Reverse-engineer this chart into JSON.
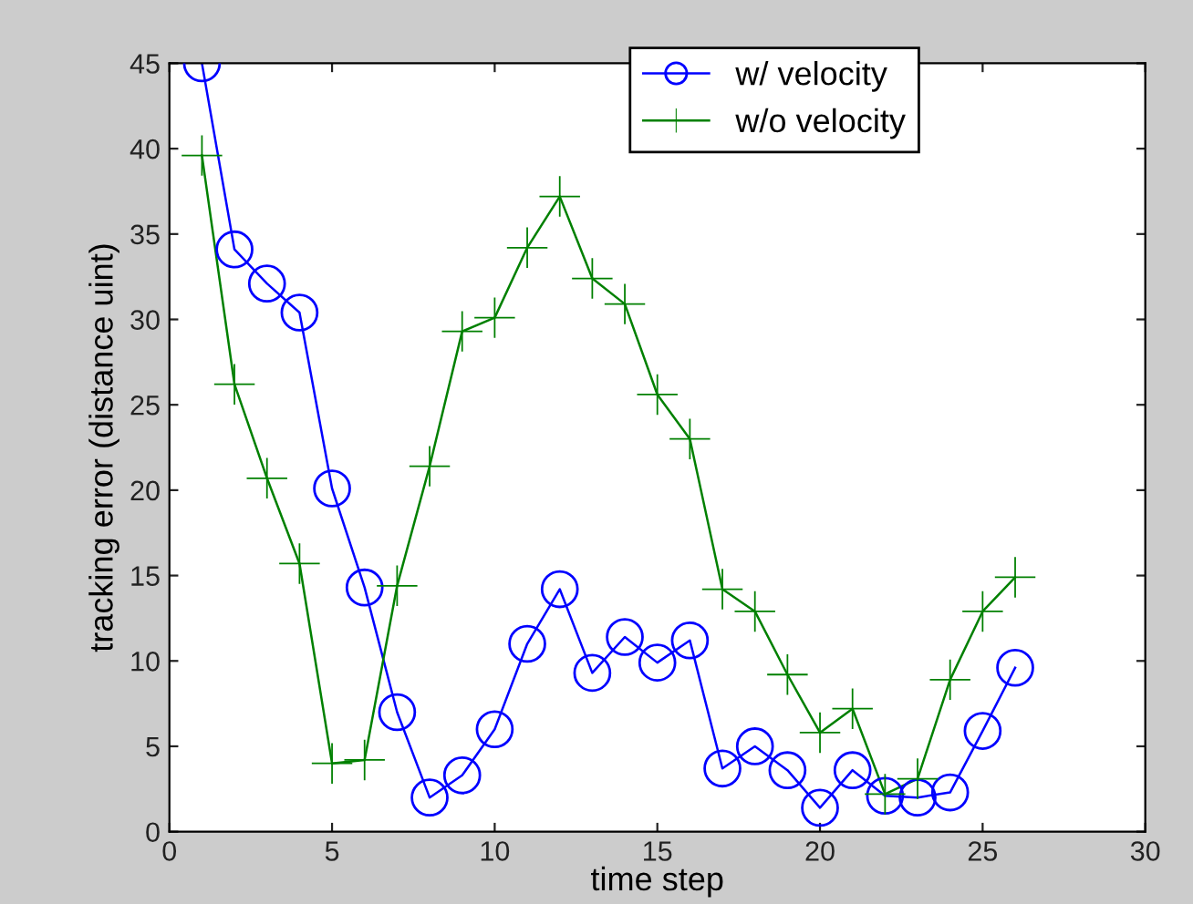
{
  "chart_data": {
    "type": "line",
    "xlabel": "time step",
    "ylabel": "tracking error (distance uint)",
    "x": [
      1,
      2,
      3,
      4,
      5,
      6,
      7,
      8,
      9,
      10,
      11,
      12,
      13,
      14,
      15,
      16,
      17,
      18,
      19,
      20,
      21,
      22,
      23,
      24,
      25,
      26
    ],
    "series": [
      {
        "name": "w/ velocity",
        "color": "#0000ff",
        "marker": "circle",
        "values": [
          45,
          34.1,
          32.1,
          30.4,
          20.1,
          14.3,
          7.0,
          2.0,
          3.3,
          6.0,
          11.0,
          14.2,
          9.3,
          11.4,
          9.9,
          11.2,
          3.7,
          5.0,
          3.6,
          1.4,
          3.6,
          2.1,
          2.0,
          2.3,
          5.9,
          9.6
        ]
      },
      {
        "name": "w/o velocity",
        "color": "#008000",
        "marker": "cross",
        "values": [
          39.6,
          26.2,
          20.7,
          15.7,
          4.0,
          4.2,
          14.4,
          21.4,
          29.3,
          30.1,
          34.2,
          37.2,
          32.4,
          30.9,
          25.6,
          23.0,
          14.2,
          12.9,
          9.2,
          5.8,
          7.2,
          2.2,
          3.1,
          8.9,
          12.9,
          14.9
        ]
      }
    ],
    "xlim": [
      0,
      30
    ],
    "xticks": [
      0,
      5,
      10,
      15,
      20,
      25,
      30
    ],
    "ylim": [
      0,
      45
    ],
    "yticks": [
      0,
      5,
      10,
      15,
      20,
      25,
      30,
      35,
      40,
      45
    ],
    "grid": false,
    "legend": "top"
  }
}
